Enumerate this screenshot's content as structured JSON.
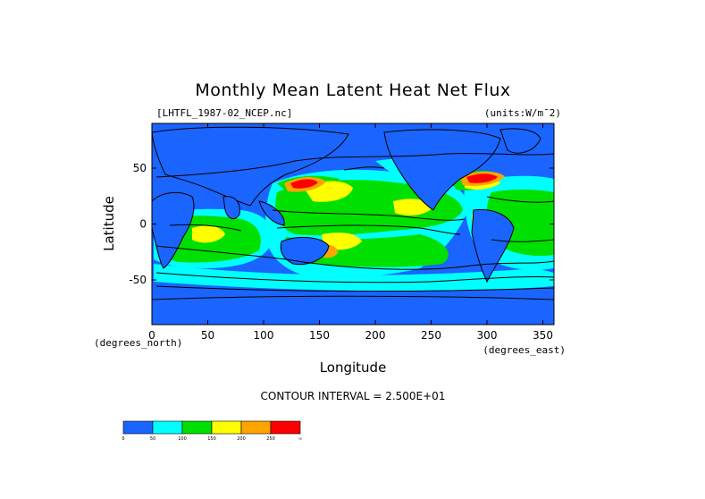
{
  "chart_data": {
    "type": "heatmap",
    "title": "Monthly Mean Latent Heat Net Flux",
    "file_label": "[LHTFL_1987-02_NCEP.nc]",
    "units_label": "(units:W/m¯2)",
    "xlabel": "Longitude",
    "ylabel": "Latitude",
    "x_unit_label": "(degrees_east)",
    "y_unit_label": "(degrees_north)",
    "xlim": [
      0,
      360
    ],
    "ylim": [
      -90,
      90
    ],
    "x_ticks": [
      0,
      50,
      100,
      150,
      200,
      250,
      300,
      350
    ],
    "y_ticks": [
      -50,
      0,
      50
    ],
    "contour_interval_text": "CONTOUR INTERVAL = 2.500E+01",
    "contour_interval": 25,
    "colorbar": {
      "levels": [
        "0",
        "50",
        "100",
        "150",
        "200",
        "250",
        "∞"
      ],
      "colors": [
        "#1a64ff",
        "#00ffff",
        "#00e000",
        "#ffff00",
        "#ffa500",
        "#ff0000"
      ]
    },
    "colors": {
      "land": "#1a64ff",
      "low": "#1a64ff",
      "mid_low": "#00ffff",
      "mid": "#00e000",
      "high": "#ffff00",
      "very_high": "#ffa500",
      "extreme": "#ff0000"
    }
  }
}
